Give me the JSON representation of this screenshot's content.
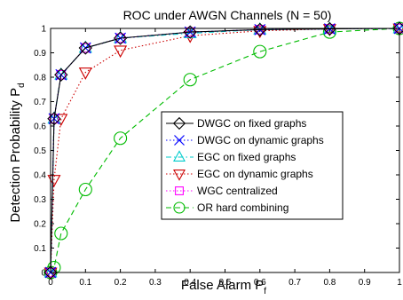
{
  "chart_data": {
    "type": "line",
    "title": "ROC under AWGN Channels (N = 50)",
    "xlabel_main": "False Alarm P",
    "xlabel_sub": "f",
    "ylabel_main": "Detection Probability P",
    "ylabel_sub": "d",
    "xlim": [
      0,
      1
    ],
    "ylim": [
      0,
      1
    ],
    "xticks": [
      "0",
      "0.1",
      "0.2",
      "0.3",
      "0.4",
      "0.5",
      "0.6",
      "0.7",
      "0.8",
      "0.9",
      "1"
    ],
    "yticks": [
      "0",
      "0.1",
      "0.2",
      "0.3",
      "0.4",
      "0.5",
      "0.6",
      "0.7",
      "0.8",
      "0.9",
      "1"
    ],
    "grid": false,
    "legend_position": "center-right",
    "series": [
      {
        "name": "DWGC on fixed graphs",
        "color": "#000000",
        "dash": "solid",
        "marker": "diamond",
        "x": [
          0,
          0.01,
          0.03,
          0.1,
          0.2,
          0.4,
          0.6,
          0.8,
          1.0
        ],
        "y": [
          0.0,
          0.63,
          0.81,
          0.92,
          0.96,
          0.985,
          0.995,
          0.998,
          1.0
        ]
      },
      {
        "name": "DWGC on dynamic graphs",
        "color": "#0000ff",
        "dash": "dot",
        "marker": "x",
        "x": [
          0,
          0.01,
          0.03,
          0.1,
          0.2,
          0.4,
          0.6,
          0.8,
          1.0
        ],
        "y": [
          0.0,
          0.63,
          0.81,
          0.92,
          0.96,
          0.985,
          0.995,
          0.998,
          1.0
        ]
      },
      {
        "name": "EGC on fixed graphs",
        "color": "#00cccc",
        "dash": "dashdot",
        "marker": "triangle-up",
        "x": [
          0,
          0.01,
          0.03,
          0.1,
          0.2,
          0.4,
          0.6,
          0.8,
          1.0
        ],
        "y": [
          0.0,
          0.63,
          0.81,
          0.92,
          0.96,
          0.98,
          0.995,
          0.998,
          1.0
        ]
      },
      {
        "name": "EGC on dynamic graphs",
        "color": "#cc0000",
        "dash": "dot",
        "marker": "triangle-down",
        "x": [
          0,
          0.01,
          0.03,
          0.1,
          0.2,
          0.4,
          0.6,
          0.8,
          1.0
        ],
        "y": [
          0.0,
          0.38,
          0.63,
          0.82,
          0.91,
          0.97,
          0.99,
          0.998,
          1.0
        ]
      },
      {
        "name": "WGC centralized",
        "color": "#ff00ff",
        "dash": "dot",
        "marker": "square",
        "x": [
          0,
          0.01,
          0.03,
          0.1,
          0.2,
          0.4,
          0.6,
          0.8,
          1.0
        ],
        "y": [
          0.0,
          0.63,
          0.81,
          0.92,
          0.96,
          0.985,
          0.995,
          0.998,
          1.0
        ]
      },
      {
        "name": "OR hard combining",
        "color": "#00bb00",
        "dash": "dash",
        "marker": "circle",
        "x": [
          0,
          0.01,
          0.03,
          0.1,
          0.2,
          0.4,
          0.6,
          0.8,
          1.0
        ],
        "y": [
          0.0,
          0.02,
          0.16,
          0.34,
          0.55,
          0.79,
          0.905,
          0.985,
          1.0
        ]
      }
    ]
  }
}
